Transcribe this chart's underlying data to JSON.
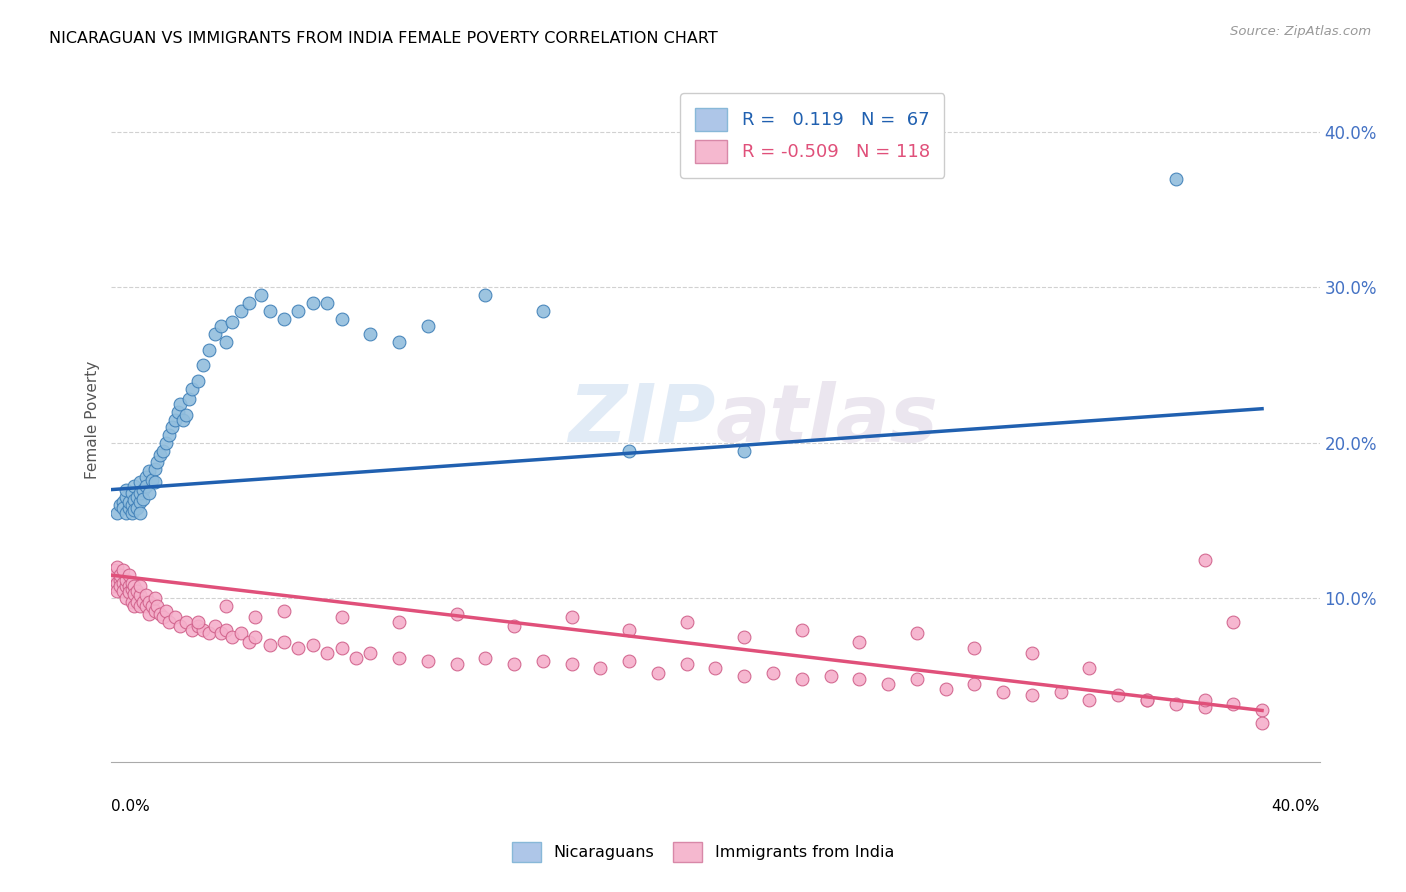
{
  "title": "NICARAGUAN VS IMMIGRANTS FROM INDIA FEMALE POVERTY CORRELATION CHART",
  "source": "Source: ZipAtlas.com",
  "ylabel": "Female Poverty",
  "yticks": [
    "10.0%",
    "20.0%",
    "30.0%",
    "40.0%"
  ],
  "ytick_vals": [
    0.1,
    0.2,
    0.3,
    0.4
  ],
  "xlim": [
    0.0,
    0.42
  ],
  "ylim": [
    -0.005,
    0.435
  ],
  "legend1_label": "R =   0.119   N =  67",
  "legend2_label": "R = -0.509   N = 118",
  "legend1_color": "#aec6e8",
  "legend2_color": "#f5b8cf",
  "scatter1_color": "#92bedd",
  "scatter2_color": "#f5b0cb",
  "line1_color": "#2060b0",
  "line2_color": "#e0507a",
  "watermark_zip": "ZIP",
  "watermark_atlas": "atlas",
  "bottom_legend_label1": "Nicaraguans",
  "bottom_legend_label2": "Immigrants from India",
  "nic_x": [
    0.002,
    0.003,
    0.004,
    0.004,
    0.005,
    0.005,
    0.005,
    0.006,
    0.006,
    0.007,
    0.007,
    0.007,
    0.008,
    0.008,
    0.008,
    0.009,
    0.009,
    0.01,
    0.01,
    0.01,
    0.01,
    0.011,
    0.011,
    0.012,
    0.012,
    0.013,
    0.013,
    0.014,
    0.015,
    0.015,
    0.016,
    0.017,
    0.018,
    0.019,
    0.02,
    0.021,
    0.022,
    0.023,
    0.024,
    0.025,
    0.026,
    0.027,
    0.028,
    0.03,
    0.032,
    0.034,
    0.036,
    0.038,
    0.04,
    0.042,
    0.045,
    0.048,
    0.052,
    0.055,
    0.06,
    0.065,
    0.07,
    0.075,
    0.08,
    0.09,
    0.1,
    0.11,
    0.13,
    0.15,
    0.18,
    0.22,
    0.37
  ],
  "nic_y": [
    0.155,
    0.16,
    0.162,
    0.158,
    0.165,
    0.155,
    0.17,
    0.158,
    0.162,
    0.155,
    0.16,
    0.168,
    0.163,
    0.157,
    0.172,
    0.165,
    0.158,
    0.162,
    0.168,
    0.155,
    0.175,
    0.17,
    0.164,
    0.178,
    0.172,
    0.182,
    0.168,
    0.176,
    0.183,
    0.175,
    0.188,
    0.192,
    0.195,
    0.2,
    0.205,
    0.21,
    0.215,
    0.22,
    0.225,
    0.215,
    0.218,
    0.228,
    0.235,
    0.24,
    0.25,
    0.26,
    0.27,
    0.275,
    0.265,
    0.278,
    0.285,
    0.29,
    0.295,
    0.285,
    0.28,
    0.285,
    0.29,
    0.29,
    0.28,
    0.27,
    0.265,
    0.275,
    0.295,
    0.285,
    0.195,
    0.195,
    0.37
  ],
  "ind_x": [
    0.0,
    0.001,
    0.001,
    0.002,
    0.002,
    0.002,
    0.003,
    0.003,
    0.003,
    0.004,
    0.004,
    0.004,
    0.005,
    0.005,
    0.005,
    0.006,
    0.006,
    0.006,
    0.007,
    0.007,
    0.007,
    0.008,
    0.008,
    0.008,
    0.009,
    0.009,
    0.01,
    0.01,
    0.01,
    0.011,
    0.012,
    0.012,
    0.013,
    0.013,
    0.014,
    0.015,
    0.015,
    0.016,
    0.017,
    0.018,
    0.019,
    0.02,
    0.022,
    0.024,
    0.026,
    0.028,
    0.03,
    0.032,
    0.034,
    0.036,
    0.038,
    0.04,
    0.042,
    0.045,
    0.048,
    0.05,
    0.055,
    0.06,
    0.065,
    0.07,
    0.075,
    0.08,
    0.085,
    0.09,
    0.1,
    0.11,
    0.12,
    0.13,
    0.14,
    0.15,
    0.16,
    0.17,
    0.18,
    0.19,
    0.2,
    0.21,
    0.22,
    0.23,
    0.24,
    0.25,
    0.26,
    0.27,
    0.28,
    0.29,
    0.3,
    0.31,
    0.32,
    0.33,
    0.34,
    0.35,
    0.36,
    0.37,
    0.38,
    0.39,
    0.4,
    0.03,
    0.04,
    0.05,
    0.06,
    0.08,
    0.1,
    0.12,
    0.14,
    0.16,
    0.18,
    0.2,
    0.22,
    0.24,
    0.26,
    0.28,
    0.3,
    0.32,
    0.34,
    0.36,
    0.38,
    0.38,
    0.39,
    0.4
  ],
  "ind_y": [
    0.115,
    0.108,
    0.118,
    0.11,
    0.105,
    0.12,
    0.112,
    0.108,
    0.115,
    0.11,
    0.105,
    0.118,
    0.108,
    0.112,
    0.1,
    0.108,
    0.104,
    0.115,
    0.106,
    0.11,
    0.098,
    0.108,
    0.103,
    0.095,
    0.105,
    0.098,
    0.102,
    0.095,
    0.108,
    0.098,
    0.095,
    0.102,
    0.098,
    0.09,
    0.095,
    0.092,
    0.1,
    0.095,
    0.09,
    0.088,
    0.092,
    0.085,
    0.088,
    0.082,
    0.085,
    0.08,
    0.082,
    0.08,
    0.078,
    0.082,
    0.078,
    0.08,
    0.075,
    0.078,
    0.072,
    0.075,
    0.07,
    0.072,
    0.068,
    0.07,
    0.065,
    0.068,
    0.062,
    0.065,
    0.062,
    0.06,
    0.058,
    0.062,
    0.058,
    0.06,
    0.058,
    0.055,
    0.06,
    0.052,
    0.058,
    0.055,
    0.05,
    0.052,
    0.048,
    0.05,
    0.048,
    0.045,
    0.048,
    0.042,
    0.045,
    0.04,
    0.038,
    0.04,
    0.035,
    0.038,
    0.035,
    0.032,
    0.03,
    0.032,
    0.028,
    0.085,
    0.095,
    0.088,
    0.092,
    0.088,
    0.085,
    0.09,
    0.082,
    0.088,
    0.08,
    0.085,
    0.075,
    0.08,
    0.072,
    0.078,
    0.068,
    0.065,
    0.055,
    0.035,
    0.035,
    0.125,
    0.085,
    0.02
  ]
}
